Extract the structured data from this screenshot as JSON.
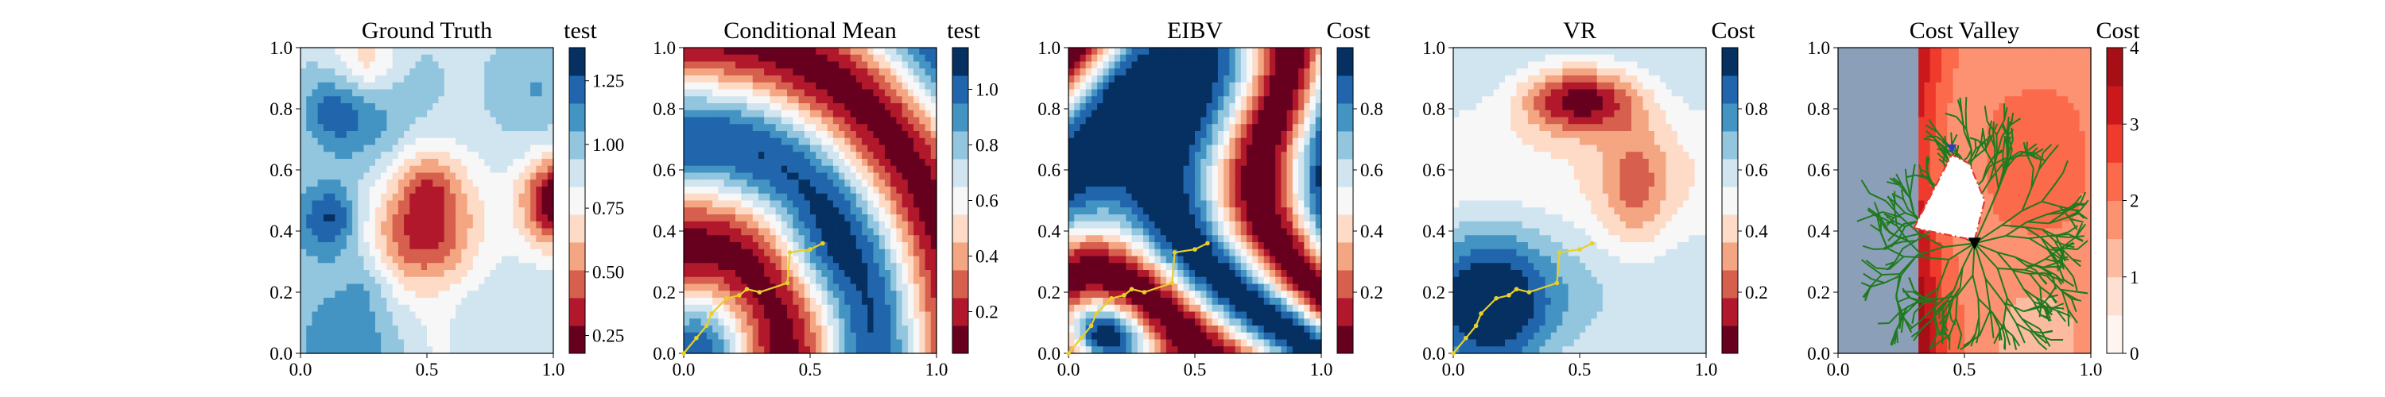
{
  "chart_data": [
    {
      "type": "heatmap",
      "title": "Ground Truth",
      "colorbar_label": "test",
      "colormap": "RdBu",
      "xlim": [
        0,
        1
      ],
      "ylim": [
        0,
        1
      ],
      "xticks": [
        "0.0",
        "0.5",
        "1.0"
      ],
      "yticks": [
        "0.0",
        "0.2",
        "0.4",
        "0.6",
        "0.8",
        "1.0"
      ],
      "colorbar_range": [
        0.18,
        1.38
      ],
      "colorbar_ticks": [
        0.25,
        0.5,
        0.75,
        1.0,
        1.25
      ],
      "colorbar_ticklabels": [
        "0.25",
        "0.50",
        "0.75",
        "1.00",
        "1.25"
      ],
      "field": "random"
    },
    {
      "type": "heatmap",
      "title": "Conditional Mean",
      "colorbar_label": "test",
      "colormap": "RdBu",
      "xlim": [
        0,
        1
      ],
      "ylim": [
        0,
        1
      ],
      "xticks": [
        "0.0",
        "0.5",
        "1.0"
      ],
      "yticks": [
        "0.0",
        "0.2",
        "0.4",
        "0.6",
        "0.8",
        "1.0"
      ],
      "colorbar_range": [
        0.05,
        1.15
      ],
      "colorbar_ticks": [
        0.2,
        0.4,
        0.6,
        0.8,
        1.0
      ],
      "colorbar_ticklabels": [
        "0.2",
        "0.4",
        "0.6",
        "0.8",
        "1.0"
      ],
      "field": "rings",
      "path_x": [
        0.0,
        0.05,
        0.09,
        0.11,
        0.17,
        0.22,
        0.25,
        0.3,
        0.41,
        0.42,
        0.5,
        0.55
      ],
      "path_y": [
        0.0,
        0.05,
        0.09,
        0.13,
        0.18,
        0.19,
        0.21,
        0.2,
        0.23,
        0.33,
        0.34,
        0.36
      ]
    },
    {
      "type": "heatmap",
      "title": "EIBV",
      "colorbar_label": "Cost",
      "colormap": "RdBu",
      "xlim": [
        0,
        1
      ],
      "ylim": [
        0,
        1
      ],
      "xticks": [
        "0.0",
        "0.5",
        "1.0"
      ],
      "yticks": [
        "0.0",
        "0.2",
        "0.4",
        "0.6",
        "0.8",
        "1.0"
      ],
      "colorbar_range": [
        0.0,
        1.0
      ],
      "colorbar_ticks": [
        0.2,
        0.4,
        0.6,
        0.8
      ],
      "colorbar_ticklabels": [
        "0.2",
        "0.4",
        "0.6",
        "0.8"
      ],
      "field": "eibv",
      "path_x": [
        0.0,
        0.05,
        0.09,
        0.11,
        0.17,
        0.22,
        0.25,
        0.3,
        0.41,
        0.42,
        0.5,
        0.55
      ],
      "path_y": [
        0.0,
        0.05,
        0.09,
        0.13,
        0.18,
        0.19,
        0.21,
        0.2,
        0.23,
        0.33,
        0.34,
        0.36
      ]
    },
    {
      "type": "heatmap",
      "title": "VR",
      "colorbar_label": "Cost",
      "colormap": "RdBu",
      "xlim": [
        0,
        1
      ],
      "ylim": [
        0,
        1
      ],
      "xticks": [
        "0.0",
        "0.5",
        "1.0"
      ],
      "yticks": [
        "0.0",
        "0.2",
        "0.4",
        "0.6",
        "0.8",
        "1.0"
      ],
      "colorbar_range": [
        0.0,
        1.0
      ],
      "colorbar_ticks": [
        0.2,
        0.4,
        0.6,
        0.8
      ],
      "colorbar_ticklabels": [
        "0.2",
        "0.4",
        "0.6",
        "0.8"
      ],
      "field": "vr",
      "path_x": [
        0.0,
        0.05,
        0.09,
        0.11,
        0.17,
        0.22,
        0.25,
        0.3,
        0.41,
        0.42,
        0.5,
        0.55
      ],
      "path_y": [
        0.0,
        0.05,
        0.09,
        0.13,
        0.18,
        0.19,
        0.21,
        0.2,
        0.23,
        0.33,
        0.34,
        0.36
      ]
    },
    {
      "type": "heatmap",
      "title": "Cost Valley",
      "colorbar_label": "Cost",
      "colormap": "Reds",
      "xlim": [
        0,
        1
      ],
      "ylim": [
        0,
        1
      ],
      "xticks": [
        "0.0",
        "0.5",
        "1.0"
      ],
      "yticks": [
        "0.0",
        "0.2",
        "0.4",
        "0.6",
        "0.8",
        "1.0"
      ],
      "colorbar_range": [
        0,
        4
      ],
      "colorbar_ticks": [
        0,
        1,
        2,
        3,
        4
      ],
      "colorbar_ticklabels": [
        "0",
        "1",
        "2",
        "3",
        "4"
      ],
      "field": "valley",
      "tree_root": [
        0.54,
        0.36
      ],
      "obstacle_polygon": [
        [
          0.3,
          0.41
        ],
        [
          0.45,
          0.65
        ],
        [
          0.52,
          0.62
        ],
        [
          0.58,
          0.5
        ],
        [
          0.54,
          0.37
        ]
      ],
      "start_marker": [
        0.54,
        0.36
      ],
      "goal_marker": [
        0.45,
        0.67
      ]
    }
  ],
  "colors": {
    "path": "#e8d02a",
    "tree": "#1f7a1f",
    "obstacle": "#e53935",
    "start": "#000000",
    "goal": "#2b3ec9"
  }
}
